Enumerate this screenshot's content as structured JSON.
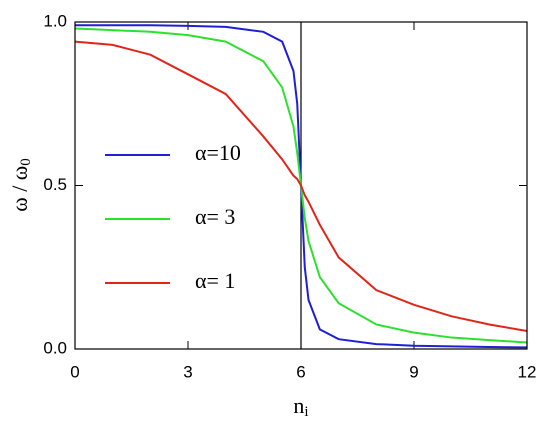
{
  "chart_data": {
    "type": "line",
    "xlabel": {
      "text": "n",
      "sub": "i"
    },
    "ylabel": {
      "text": "ω / ω",
      "sub": "0"
    },
    "x": [
      0,
      1,
      2,
      3,
      4,
      5,
      5.5,
      5.8,
      5.9,
      6,
      6.1,
      6.2,
      6.5,
      7,
      8,
      9,
      10,
      11,
      12
    ],
    "series": [
      {
        "name": "α=10",
        "color": "#1f1fd6",
        "values": [
          0.99,
          0.99,
          0.99,
          0.988,
          0.985,
          0.97,
          0.94,
          0.85,
          0.75,
          0.5,
          0.25,
          0.15,
          0.06,
          0.03,
          0.015,
          0.01,
          0.008,
          0.006,
          0.005
        ]
      },
      {
        "name": "α= 3",
        "color": "#2ee02e",
        "values": [
          0.98,
          0.975,
          0.97,
          0.96,
          0.94,
          0.88,
          0.8,
          0.68,
          0.6,
          0.5,
          0.4,
          0.33,
          0.22,
          0.14,
          0.075,
          0.05,
          0.035,
          0.027,
          0.02
        ]
      },
      {
        "name": "α= 1",
        "color": "#e0261a",
        "values": [
          0.94,
          0.93,
          0.9,
          0.84,
          0.78,
          0.65,
          0.58,
          0.53,
          0.52,
          0.5,
          0.47,
          0.45,
          0.38,
          0.28,
          0.18,
          0.135,
          0.1,
          0.075,
          0.055
        ]
      }
    ],
    "xlim": [
      0,
      12
    ],
    "ylim": [
      0,
      1
    ],
    "xticks": [
      0,
      3,
      6,
      9,
      12
    ],
    "yticks": [
      {
        "value": 0,
        "label": "0.0"
      },
      {
        "value": 0.5,
        "label": "0.5"
      },
      {
        "value": 1,
        "label": "1.0"
      }
    ],
    "vline": 6
  }
}
